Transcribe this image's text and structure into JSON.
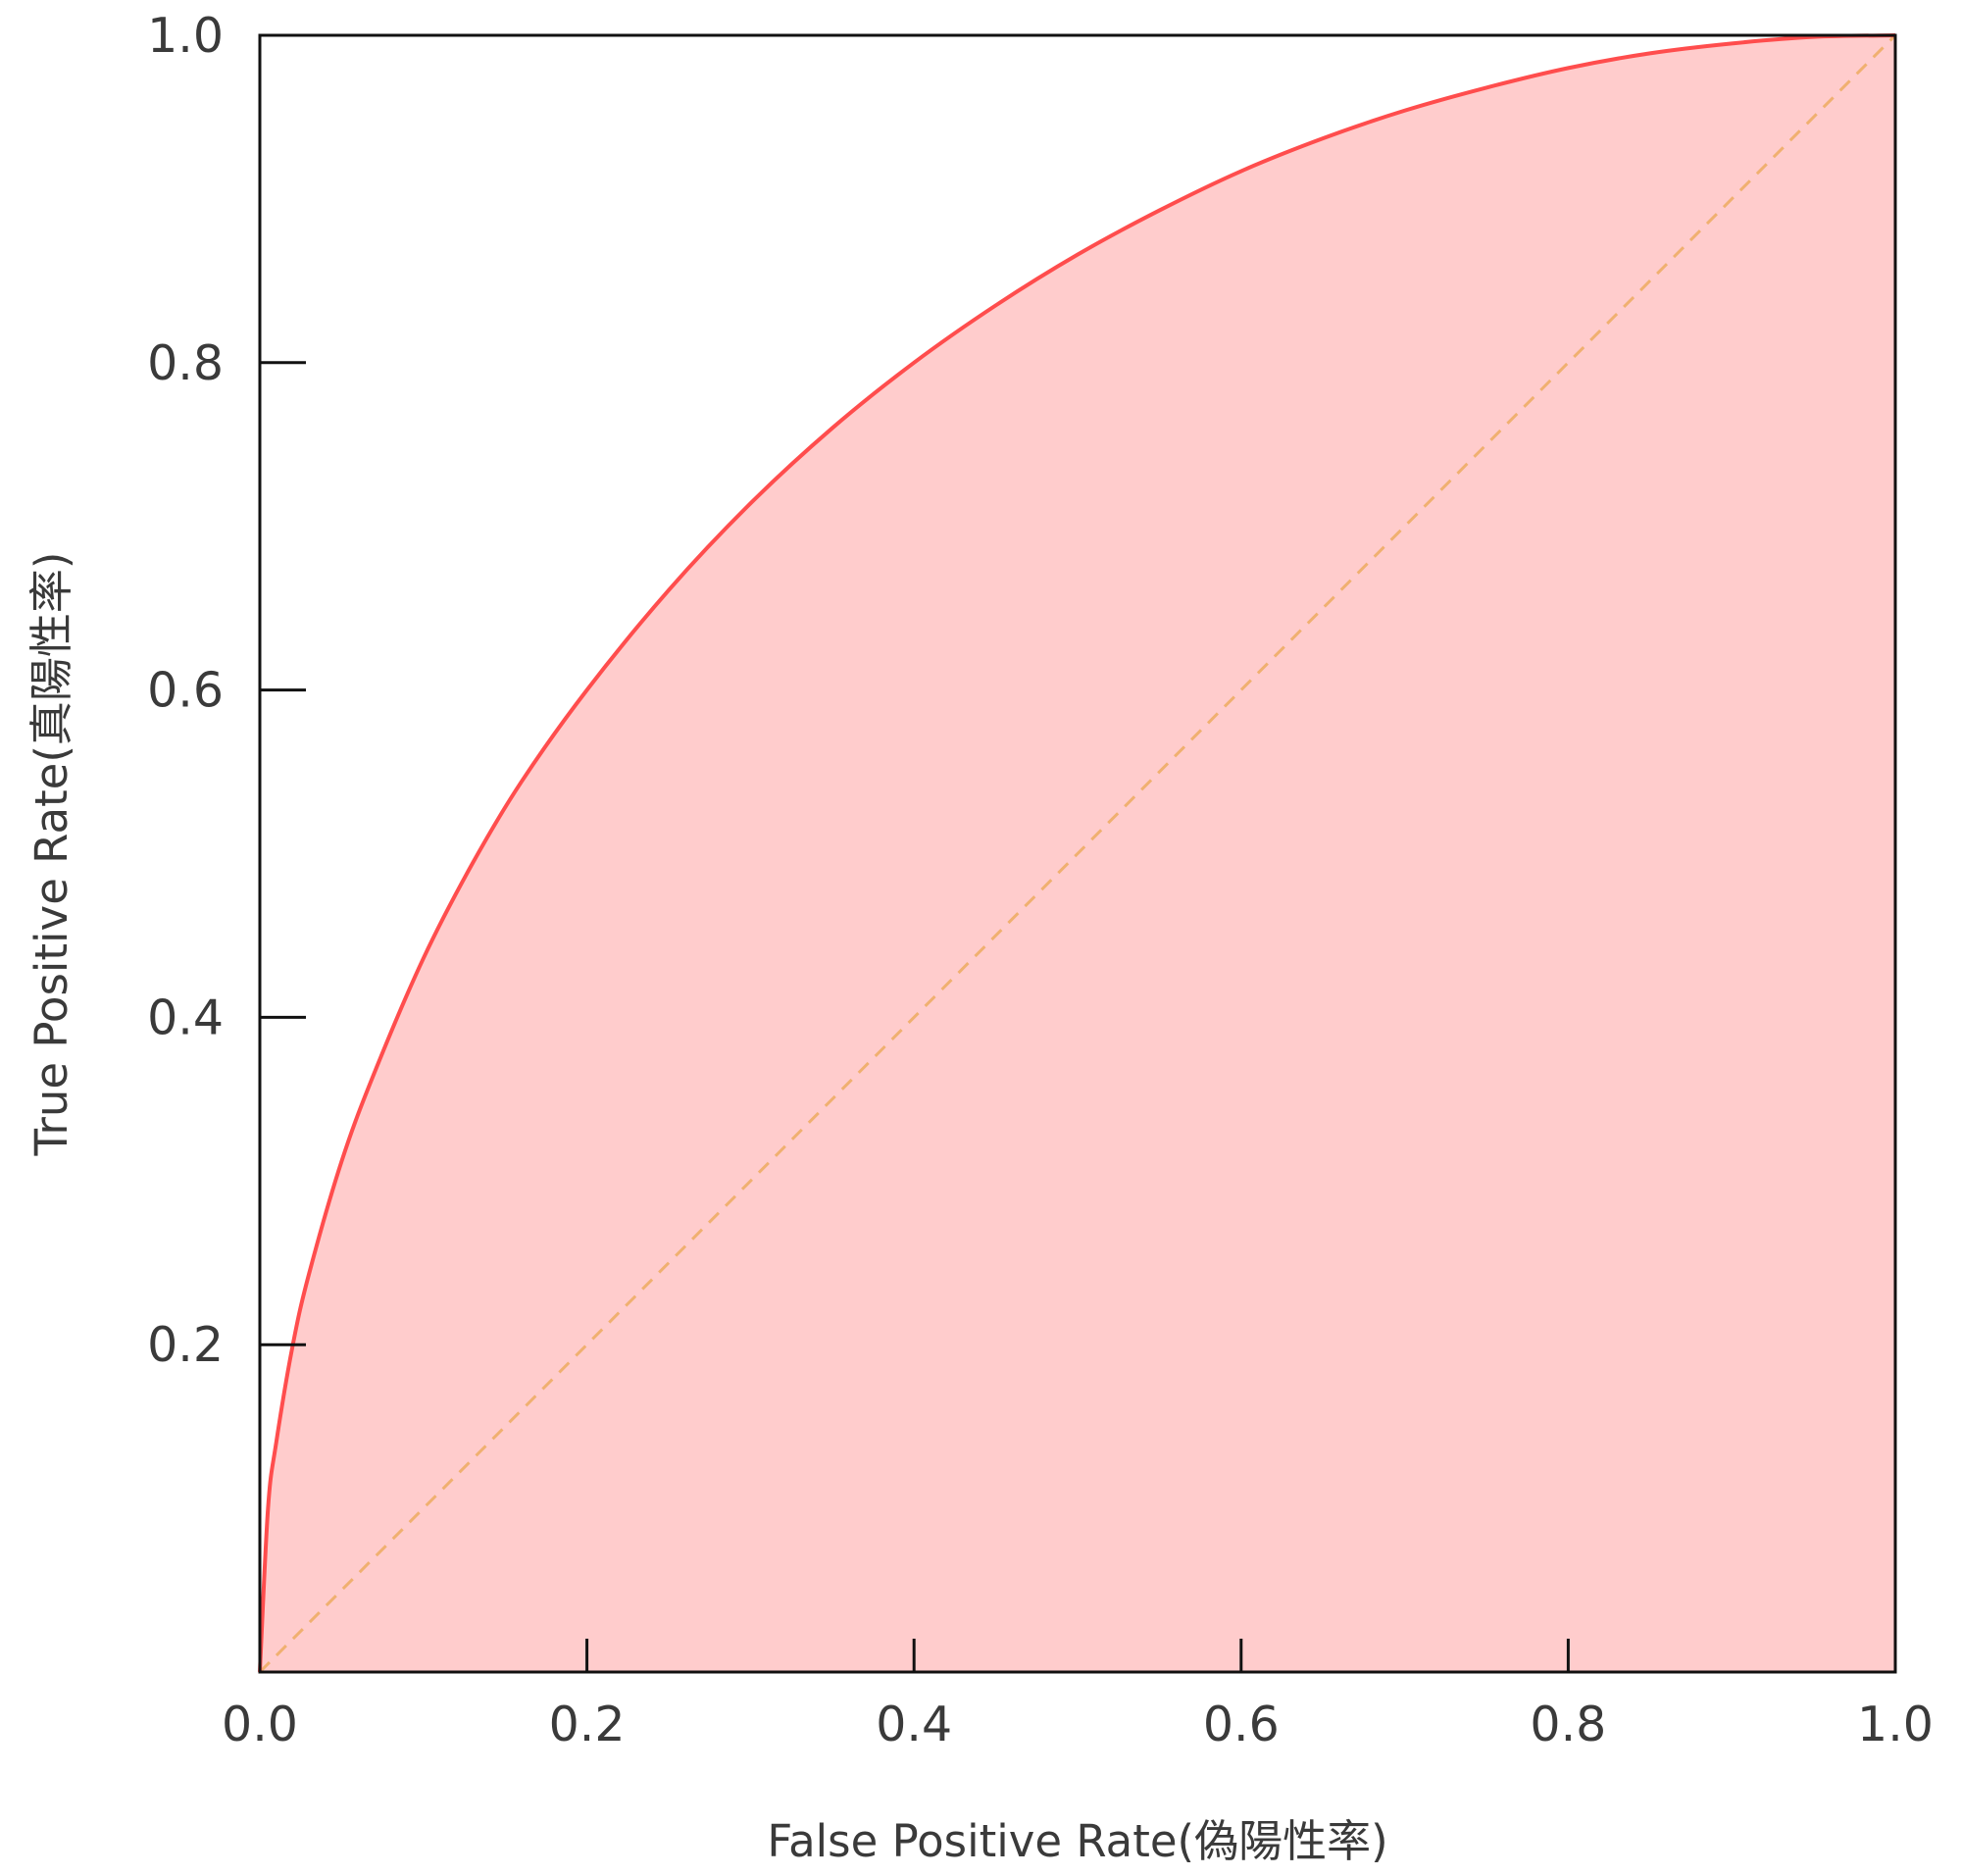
{
  "chart_data": {
    "type": "area",
    "title": "",
    "xlabel": "False Positive Rate(偽陽性率)",
    "ylabel": "True Positive Rate(真陽性率)",
    "xlim": [
      0,
      1
    ],
    "ylim": [
      0,
      1
    ],
    "x_ticks": [
      "0.0",
      "0.2",
      "0.4",
      "0.6",
      "0.8",
      "1.0"
    ],
    "y_ticks": [
      "0.2",
      "0.4",
      "0.6",
      "0.8",
      "1.0"
    ],
    "grid": false,
    "legend": "none",
    "series": [
      {
        "style": "solid-line-with-fill",
        "color": "#ff4d4d",
        "fill_color": "#ffcccc",
        "x": [
          0.0,
          0.005,
          0.01,
          0.02,
          0.03,
          0.05,
          0.07,
          0.1,
          0.13,
          0.16,
          0.2,
          0.25,
          0.3,
          0.35,
          0.4,
          0.45,
          0.5,
          0.55,
          0.6,
          0.65,
          0.7,
          0.75,
          0.8,
          0.85,
          0.9,
          0.95,
          1.0
        ],
        "y": [
          0.0,
          0.1,
          0.14,
          0.199,
          0.243,
          0.312,
          0.366,
          0.436,
          0.494,
          0.544,
          0.6,
          0.661,
          0.714,
          0.76,
          0.8,
          0.835,
          0.866,
          0.893,
          0.917,
          0.937,
          0.954,
          0.968,
          0.98,
          0.989,
          0.995,
          0.999,
          1.0
        ]
      },
      {
        "style": "dashed-line",
        "color": "#f0b070",
        "x": [
          0.0,
          1.0
        ],
        "y": [
          0.0,
          1.0
        ]
      }
    ]
  }
}
